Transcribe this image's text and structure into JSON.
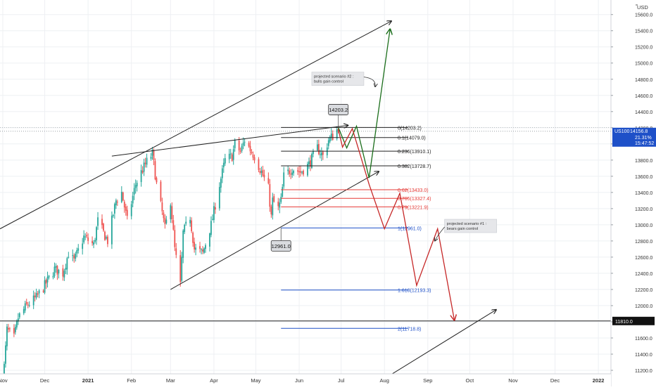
{
  "chart_data": {
    "type": "candlestick",
    "symbol": "US100",
    "currency_label": "USD",
    "last_price": "14156.8",
    "change_pct": "21.31%",
    "countdown": "15:47:52",
    "horizontal_level": "11810.0",
    "colors": {
      "up": "#26a69a",
      "down": "#ef5350",
      "background": "#ffffff",
      "grid": "#eef0f3"
    },
    "x_axis": {
      "labels": [
        "Nov",
        "Dec",
        "2021",
        "Feb",
        "Mar",
        "Apr",
        "May",
        "Jun",
        "Jul",
        "Aug",
        "Sep",
        "Oct",
        "Nov",
        "Dec",
        "2022"
      ],
      "bold_labels": [
        "2021",
        "2022"
      ],
      "start": "2020-10-30",
      "end": "2022-01-10"
    },
    "y_axis": {
      "scale": "linear",
      "range": [
        11000,
        15780
      ],
      "ticks": [
        "11200.0",
        "11400.0",
        "11600.0",
        "11800.0",
        "12000.0",
        "12200.0",
        "12400.0",
        "12600.0",
        "12800.0",
        "13000.0",
        "13200.0",
        "13400.0",
        "13600.0",
        "13800.0",
        "14000.0",
        "14200.0",
        "14400.0",
        "14600.0",
        "14800.0",
        "15000.0",
        "15200.0",
        "15400.0",
        "15600.0"
      ]
    },
    "price_path": [
      [
        "2020-10-30",
        11050
      ],
      [
        "2020-11-02",
        11250
      ],
      [
        "2020-11-04",
        11700
      ],
      [
        "2020-11-09",
        11600
      ],
      [
        "2020-11-12",
        11850
      ],
      [
        "2020-11-18",
        12000
      ],
      [
        "2020-11-25",
        12100
      ],
      [
        "2020-12-01",
        12250
      ],
      [
        "2020-12-08",
        12450
      ],
      [
        "2020-12-14",
        12400
      ],
      [
        "2020-12-18",
        12650
      ],
      [
        "2020-12-22",
        12550
      ],
      [
        "2020-12-29",
        12850
      ],
      [
        "2021-01-05",
        12750
      ],
      [
        "2021-01-08",
        13050
      ],
      [
        "2021-01-12",
        12900
      ],
      [
        "2021-01-15",
        12800
      ],
      [
        "2021-01-21",
        13300
      ],
      [
        "2021-01-25",
        13400
      ],
      [
        "2021-01-29",
        13050
      ],
      [
        "2021-02-04",
        13500
      ],
      [
        "2021-02-08",
        13650
      ],
      [
        "2021-02-12",
        13780
      ],
      [
        "2021-02-16",
        13880
      ],
      [
        "2021-02-19",
        13500
      ],
      [
        "2021-02-23",
        13150
      ],
      [
        "2021-02-25",
        12950
      ],
      [
        "2021-03-01",
        13300
      ],
      [
        "2021-03-04",
        12700
      ],
      [
        "2021-03-08",
        12250
      ],
      [
        "2021-03-10",
        12900
      ],
      [
        "2021-03-15",
        13100
      ],
      [
        "2021-03-18",
        12700
      ],
      [
        "2021-03-24",
        12650
      ],
      [
        "2021-03-30",
        13000
      ],
      [
        "2021-04-05",
        13500
      ],
      [
        "2021-04-09",
        13800
      ],
      [
        "2021-04-14",
        13850
      ],
      [
        "2021-04-16",
        14000
      ],
      [
        "2021-04-20",
        13900
      ],
      [
        "2021-04-23",
        14050
      ],
      [
        "2021-04-28",
        13900
      ],
      [
        "2021-04-30",
        13850
      ],
      [
        "2021-05-05",
        13650
      ],
      [
        "2021-05-10",
        13450
      ],
      [
        "2021-05-12",
        13100
      ],
      [
        "2021-05-13",
        13300
      ],
      [
        "2021-05-17",
        13200
      ],
      [
        "2021-05-19",
        13300
      ],
      [
        "2021-05-21",
        13600
      ],
      [
        "2021-05-27",
        13700
      ],
      [
        "2021-06-02",
        13650
      ],
      [
        "2021-06-08",
        13750
      ],
      [
        "2021-06-14",
        13950
      ],
      [
        "2021-06-18",
        13850
      ],
      [
        "2021-06-22",
        14050
      ],
      [
        "2021-06-25",
        14100
      ],
      [
        "2021-06-29",
        14203.2
      ]
    ],
    "trendlines": [
      {
        "name": "upper-channel",
        "from": [
          "2020-10-30",
          12950
        ],
        "to": [
          "2021-08-06",
          15520
        ],
        "arrow": true,
        "color": "#222222"
      },
      {
        "name": "resistance",
        "from": [
          "2021-01-18",
          13850
        ],
        "to": [
          "2021-07-06",
          14230
        ],
        "arrow": true,
        "color": "#222222"
      },
      {
        "name": "lower-channel",
        "from": [
          "2021-03-01",
          12200
        ],
        "to": [
          "2021-07-28",
          13660
        ],
        "arrow": true,
        "color": "#222222"
      },
      {
        "name": "lower-parallel",
        "from": [
          "2021-07-21",
          10980
        ],
        "to": [
          "2021-10-20",
          11950
        ],
        "arrow": true,
        "color": "#222222"
      }
    ],
    "fibonacci": {
      "levels": [
        {
          "ratio": "0",
          "value": 14203.2,
          "label": "0(14203.2)",
          "color": "#222222"
        },
        {
          "ratio": "0.1",
          "value": 14079.0,
          "label": "0.1(14079.0)",
          "color": "#222222"
        },
        {
          "ratio": "0.236",
          "value": 13910.1,
          "label": "0.236(13910.1)",
          "color": "#222222"
        },
        {
          "ratio": "0.382",
          "value": 13728.7,
          "label": "0.382(13728.7)",
          "color": "#222222"
        },
        {
          "ratio": "0.62",
          "value": 13433.0,
          "label": "0.62(13433.0)",
          "color": "#e53935"
        },
        {
          "ratio": "0.705",
          "value": 13327.4,
          "label": "0.705(13327.4)",
          "color": "#e53935"
        },
        {
          "ratio": "0.79",
          "value": 13221.9,
          "label": "0.79(13221.9)",
          "color": "#e53935"
        },
        {
          "ratio": "1",
          "value": 12961.0,
          "label": "1(12961.0)",
          "color": "#1e50c8"
        },
        {
          "ratio": "1.618",
          "value": 12193.3,
          "label": "1.618(12193.3)",
          "color": "#1e50c8"
        },
        {
          "ratio": "2",
          "value": 11718.8,
          "label": "2(11718.8)",
          "color": "#1e50c8"
        }
      ],
      "start": "2021-05-19",
      "end": "2021-08-18"
    },
    "scenarios": [
      {
        "name": "bulls",
        "label": "projected scenario #2 : bulls gain control",
        "color": "#1b6e1b",
        "path": [
          [
            "2021-06-29",
            14203.2
          ],
          [
            "2021-07-05",
            13950
          ],
          [
            "2021-07-12",
            14220
          ],
          [
            "2021-07-21",
            13580
          ],
          [
            "2021-08-05",
            15420
          ]
        ],
        "note_anchor": [
          "2021-06-10",
          14810
        ],
        "note_lines": [
          "projected scenario #2 :",
          "bulls gain control"
        ]
      },
      {
        "name": "bears",
        "label": "projected scenario #1 : bears gain control",
        "color": "#c62828",
        "path": [
          [
            "2021-06-29",
            14180
          ],
          [
            "2021-07-02",
            13960
          ],
          [
            "2021-07-09",
            14190
          ],
          [
            "2021-07-21",
            13500
          ],
          [
            "2021-08-01",
            12950
          ],
          [
            "2021-08-12",
            13390
          ],
          [
            "2021-08-24",
            12250
          ],
          [
            "2021-09-08",
            12950
          ],
          [
            "2021-09-20",
            11820
          ]
        ],
        "note_anchor": [
          "2021-09-13",
          12990
        ],
        "note_lines": [
          "projected scenario #1 :",
          "bears gain control"
        ]
      }
    ],
    "price_callouts": [
      {
        "label": "14203.2",
        "date": "2021-06-29",
        "value": 14203.2,
        "position": "above"
      },
      {
        "label": "12961.0",
        "date": "2021-05-19",
        "value": 12961.0,
        "position": "below"
      }
    ]
  }
}
